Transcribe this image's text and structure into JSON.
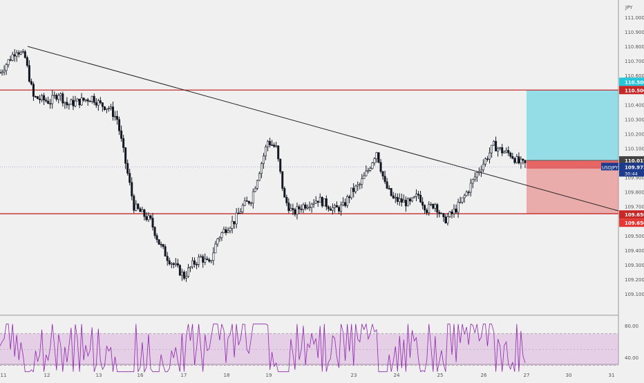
{
  "chart_data": [
    {
      "type": "candlestick",
      "symbol": "USDJPY",
      "currency_label": "JPY",
      "current_price": 109.972,
      "countdown": "30:44",
      "last_close_label": "110.017",
      "y_ticks": [
        "111.000",
        "110.900",
        "110.800",
        "110.700",
        "110.600",
        "110.500",
        "110.400",
        "110.300",
        "110.200",
        "110.100",
        "110.000",
        "109.900",
        "109.800",
        "109.700",
        "109.600",
        "109.500",
        "109.400",
        "109.300",
        "109.200",
        "109.100"
      ],
      "y_range": [
        109.05,
        111.02
      ],
      "x_ticks": [
        "11",
        "12",
        "13",
        "16",
        "17",
        "18",
        "19",
        "23",
        "24",
        "25",
        "26",
        "27",
        "30",
        "31"
      ],
      "horizontal_levels": [
        {
          "price": 110.5,
          "label": "110.500",
          "color": "#c62828"
        },
        {
          "price": 109.65,
          "label": "109.650",
          "color": "#c62828"
        }
      ],
      "trendline": {
        "from": {
          "date": "11",
          "price": 110.8
        },
        "to": {
          "date": "31",
          "price": 109.67
        }
      },
      "position": {
        "entry": 110.017,
        "target": 110.5,
        "stop": 109.65,
        "target_label": "110.500",
        "stop_label": "109.650",
        "profit_color": "#26c6da",
        "loss_color": "#e57373"
      },
      "price_path": [
        [
          0,
          110.62
        ],
        [
          2,
          110.78
        ],
        [
          3,
          110.72
        ],
        [
          4,
          110.45
        ],
        [
          6,
          110.42
        ],
        [
          7,
          110.48
        ],
        [
          8,
          110.4
        ],
        [
          10,
          110.43
        ],
        [
          11,
          110.45
        ],
        [
          12,
          110.4
        ],
        [
          13,
          110.38
        ],
        [
          14,
          110.3
        ],
        [
          15,
          110.0
        ],
        [
          16,
          109.7
        ],
        [
          18,
          109.6
        ],
        [
          19,
          109.45
        ],
        [
          20,
          109.35
        ],
        [
          22,
          109.22
        ],
        [
          23,
          109.3
        ],
        [
          24,
          109.35
        ],
        [
          25,
          109.3
        ],
        [
          26,
          109.48
        ],
        [
          27,
          109.55
        ],
        [
          28,
          109.6
        ],
        [
          29,
          109.7
        ],
        [
          30,
          109.75
        ],
        [
          31,
          109.95
        ],
        [
          32,
          110.15
        ],
        [
          33,
          110.1
        ],
        [
          34,
          109.75
        ],
        [
          35,
          109.65
        ],
        [
          36,
          109.7
        ],
        [
          38,
          109.75
        ],
        [
          40,
          109.68
        ],
        [
          41,
          109.7
        ],
        [
          42,
          109.8
        ],
        [
          43,
          109.85
        ],
        [
          44,
          109.95
        ],
        [
          45,
          110.08
        ],
        [
          46,
          109.85
        ],
        [
          47,
          109.75
        ],
        [
          49,
          109.72
        ],
        [
          50,
          109.78
        ],
        [
          51,
          109.68
        ],
        [
          52,
          109.72
        ],
        [
          53,
          109.6
        ],
        [
          54,
          109.65
        ],
        [
          55,
          109.72
        ],
        [
          56,
          109.82
        ],
        [
          57,
          109.93
        ],
        [
          58,
          110.02
        ],
        [
          59,
          110.12
        ],
        [
          60,
          110.08
        ],
        [
          61,
          110.06
        ],
        [
          62,
          110.0
        ],
        [
          63,
          109.985
        ]
      ],
      "rsi": {
        "y_ticks": [
          "80.00",
          "40.00"
        ],
        "upper": 70,
        "lower": 30,
        "mid": 50,
        "band_color": "#ce93d8",
        "line_color": "#8e24aa"
      }
    }
  ]
}
